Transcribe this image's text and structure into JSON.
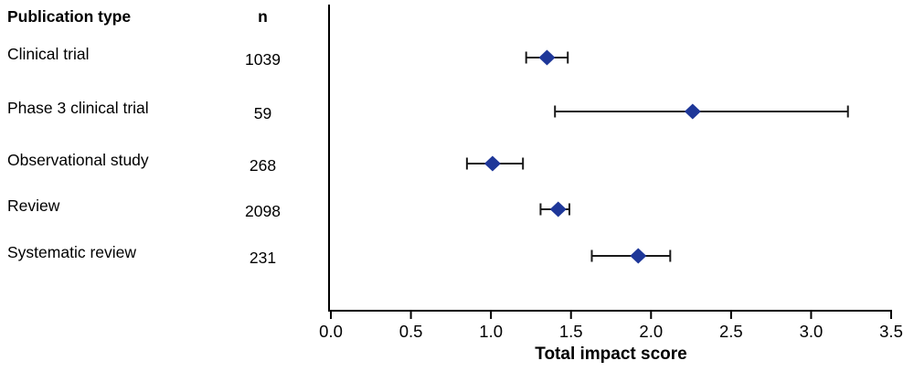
{
  "table": {
    "header": {
      "publication_type": "Publication type",
      "n": "n"
    },
    "rows": [
      {
        "label": "Clinical trial",
        "n": "1039"
      },
      {
        "label": "Phase 3 clinical trial",
        "n": "59"
      },
      {
        "label": "Observational study",
        "n": "268"
      },
      {
        "label": "Review",
        "n": "2098"
      },
      {
        "label": "Systematic review",
        "n": "231"
      }
    ]
  },
  "chart_data": {
    "type": "scatter",
    "subtype": "forest-plot",
    "title": "",
    "xlabel": "Total impact score",
    "ylabel": "",
    "xlim": [
      0.0,
      3.5
    ],
    "xticks": [
      0.0,
      0.5,
      1.0,
      1.5,
      2.0,
      2.5,
      3.0,
      3.5
    ],
    "grid": false,
    "legend": "none",
    "categories": [
      "Clinical trial",
      "Phase 3 clinical trial",
      "Observational study",
      "Review",
      "Systematic review"
    ],
    "n_values": [
      1039,
      59,
      268,
      2098,
      231
    ],
    "points": [
      {
        "category": "Clinical trial",
        "value": 1.35,
        "ci_low": 1.22,
        "ci_high": 1.48
      },
      {
        "category": "Phase 3 clinical trial",
        "value": 2.26,
        "ci_low": 1.4,
        "ci_high": 3.23
      },
      {
        "category": "Observational study",
        "value": 1.01,
        "ci_low": 0.85,
        "ci_high": 1.2
      },
      {
        "category": "Review",
        "value": 1.42,
        "ci_low": 1.31,
        "ci_high": 1.49
      },
      {
        "category": "Systematic review",
        "value": 1.92,
        "ci_low": 1.63,
        "ci_high": 2.12
      }
    ],
    "marker": "diamond",
    "marker_color": "#1e3799",
    "errorbar_color": "#1a1a1a",
    "axis_color": "#000000"
  },
  "colors": {
    "background": "#ffffff",
    "text": "#000000",
    "marker": "#1e3799"
  }
}
